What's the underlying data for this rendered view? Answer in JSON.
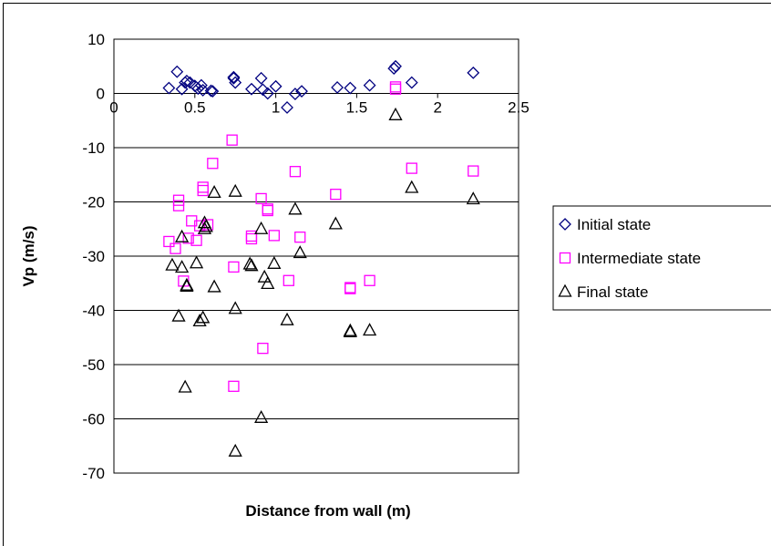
{
  "chart_data": {
    "type": "scatter",
    "title": "",
    "xlabel": "Distance from wall (m)",
    "ylabel": "Vp (m/s)",
    "xlim": [
      0,
      2.5
    ],
    "ylim": [
      -70,
      10
    ],
    "xticks": [
      "0",
      "0.5",
      "1",
      "1.5",
      "2",
      "2.5"
    ],
    "yticks": [
      "10",
      "0",
      "-10",
      "-20",
      "-30",
      "-40",
      "-50",
      "-60",
      "-70"
    ],
    "grid": "horizontal",
    "legend_position": "right",
    "series": [
      {
        "name": "Initial state",
        "color": "#000080",
        "marker": "diamond",
        "points": [
          [
            0.34,
            1.0
          ],
          [
            0.39,
            4.0
          ],
          [
            0.42,
            0.8
          ],
          [
            0.44,
            2.0
          ],
          [
            0.45,
            2.3
          ],
          [
            0.47,
            2.0
          ],
          [
            0.5,
            1.4
          ],
          [
            0.52,
            0.9
          ],
          [
            0.54,
            1.5
          ],
          [
            0.55,
            0.6
          ],
          [
            0.6,
            0.5
          ],
          [
            0.61,
            0.4
          ],
          [
            0.74,
            2.8
          ],
          [
            0.74,
            3.0
          ],
          [
            0.75,
            2.0
          ],
          [
            0.85,
            0.8
          ],
          [
            0.91,
            2.8
          ],
          [
            0.92,
            0.7
          ],
          [
            0.95,
            0.0
          ],
          [
            1.0,
            1.3
          ],
          [
            1.07,
            -2.6
          ],
          [
            1.12,
            -0.1
          ],
          [
            1.16,
            0.4
          ],
          [
            1.38,
            1.1
          ],
          [
            1.46,
            1.0
          ],
          [
            1.58,
            1.5
          ],
          [
            1.73,
            4.6
          ],
          [
            1.74,
            5.0
          ],
          [
            1.84,
            2.0
          ],
          [
            2.22,
            3.8
          ]
        ]
      },
      {
        "name": "Intermediate state",
        "color": "#FF00FF",
        "marker": "square",
        "points": [
          [
            0.34,
            -27.3
          ],
          [
            0.38,
            -28.6
          ],
          [
            0.4,
            -19.7
          ],
          [
            0.4,
            -20.7
          ],
          [
            0.43,
            -34.6
          ],
          [
            0.46,
            -26.7
          ],
          [
            0.48,
            -23.5
          ],
          [
            0.51,
            -27.1
          ],
          [
            0.53,
            -24.4
          ],
          [
            0.55,
            -17.3
          ],
          [
            0.55,
            -17.9
          ],
          [
            0.58,
            -24.2
          ],
          [
            0.61,
            -12.9
          ],
          [
            0.73,
            -8.6
          ],
          [
            0.74,
            -32.0
          ],
          [
            0.74,
            -54.0
          ],
          [
            0.85,
            -26.8
          ],
          [
            0.85,
            -26.3
          ],
          [
            0.91,
            -19.4
          ],
          [
            0.92,
            -47.0
          ],
          [
            0.95,
            -21.3
          ],
          [
            0.95,
            -21.6
          ],
          [
            0.99,
            -26.2
          ],
          [
            1.08,
            -34.5
          ],
          [
            1.12,
            -14.4
          ],
          [
            1.15,
            -26.5
          ],
          [
            1.37,
            -18.6
          ],
          [
            1.46,
            -35.8
          ],
          [
            1.46,
            -36.0
          ],
          [
            1.58,
            -34.5
          ],
          [
            1.74,
            1.2
          ],
          [
            1.74,
            0.8
          ],
          [
            1.84,
            -13.8
          ],
          [
            2.22,
            -14.3
          ]
        ]
      },
      {
        "name": "Final state",
        "color": "#000000",
        "marker": "triangle",
        "points": [
          [
            0.36,
            -31.7
          ],
          [
            0.4,
            -41.1
          ],
          [
            0.42,
            -26.5
          ],
          [
            0.42,
            -32.1
          ],
          [
            0.44,
            -54.2
          ],
          [
            0.45,
            -35.4
          ],
          [
            0.45,
            -35.6
          ],
          [
            0.51,
            -31.3
          ],
          [
            0.53,
            -42.0
          ],
          [
            0.55,
            -41.4
          ],
          [
            0.56,
            -23.9
          ],
          [
            0.57,
            -24.6
          ],
          [
            0.56,
            -25.0
          ],
          [
            0.62,
            -18.3
          ],
          [
            0.62,
            -35.7
          ],
          [
            0.75,
            -18.1
          ],
          [
            0.75,
            -39.7
          ],
          [
            0.75,
            -66.0
          ],
          [
            0.84,
            -31.5
          ],
          [
            0.85,
            -31.8
          ],
          [
            0.91,
            -25.0
          ],
          [
            0.91,
            -59.8
          ],
          [
            0.93,
            -33.9
          ],
          [
            0.95,
            -35.1
          ],
          [
            0.99,
            -31.4
          ],
          [
            1.07,
            -41.8
          ],
          [
            1.12,
            -21.4
          ],
          [
            1.15,
            -29.4
          ],
          [
            1.37,
            -24.1
          ],
          [
            1.46,
            -43.8
          ],
          [
            1.46,
            -44.0
          ],
          [
            1.58,
            -43.7
          ],
          [
            1.74,
            -4.0
          ],
          [
            1.84,
            -17.4
          ],
          [
            2.22,
            -19.5
          ]
        ]
      }
    ]
  }
}
